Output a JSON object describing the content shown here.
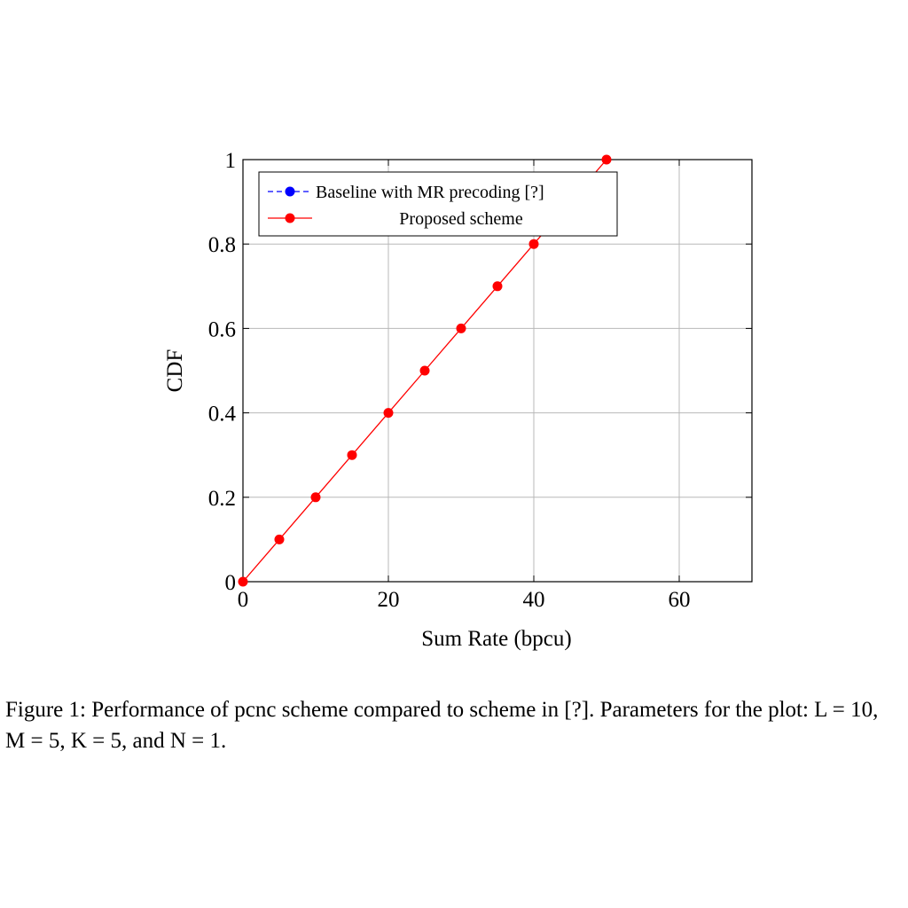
{
  "chart_data": {
    "type": "line",
    "xlabel": "Sum Rate (bpcu)",
    "ylabel": "CDF",
    "xlim": [
      0,
      70
    ],
    "ylim": [
      0,
      1
    ],
    "xticks": [
      "0",
      "20",
      "40",
      "60"
    ],
    "yticks": [
      "0",
      "0.2",
      "0.4",
      "0.6",
      "0.8",
      "1"
    ],
    "grid": true,
    "legend_position": "top-left",
    "series": [
      {
        "name": "Baseline with MR precoding [?]",
        "color": "#0000ff",
        "line_style": "dashed",
        "marker": "circle",
        "x": [],
        "y": []
      },
      {
        "name": "Proposed scheme",
        "color": "#ff0000",
        "line_style": "solid",
        "marker": "circle",
        "x": [
          0,
          5,
          10,
          15,
          20,
          25,
          30,
          35,
          40,
          45,
          50
        ],
        "y": [
          0,
          0.1,
          0.2,
          0.3,
          0.4,
          0.5,
          0.6,
          0.7,
          0.8,
          0.9,
          1.0
        ]
      }
    ]
  },
  "caption": {
    "text": "Figure 1: Performance of pcnc scheme compared to scheme in [?]. Parameters for the plot: L = 10, M = 5, K = 5, and N = 1."
  }
}
